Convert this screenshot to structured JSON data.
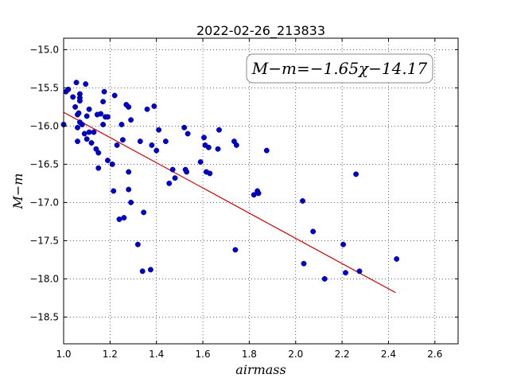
{
  "chart_data": {
    "type": "scatter",
    "title": "2022-02-26_213833",
    "xlabel": "airmass",
    "ylabel": "M−m",
    "xlim": [
      1.0,
      2.7
    ],
    "ylim": [
      -18.85,
      -14.85
    ],
    "y_inverted": true,
    "grid": true,
    "x_ticks": [
      "1.0",
      "1.2",
      "1.4",
      "1.6",
      "1.8",
      "2.0",
      "2.2",
      "2.4",
      "2.6"
    ],
    "x_tick_values": [
      1.0,
      1.2,
      1.4,
      1.6,
      1.8,
      2.0,
      2.2,
      2.4,
      2.6
    ],
    "y_ticks": [
      "−15.0",
      "−15.5",
      "−16.0",
      "−16.5",
      "−17.0",
      "−17.5",
      "−18.0",
      "−18.5"
    ],
    "y_tick_values": [
      -15.0,
      -15.5,
      -16.0,
      -16.5,
      -17.0,
      -17.5,
      -18.0,
      -18.5
    ],
    "annotation": "M−m=−1.65χ−14.17",
    "fit": {
      "slope": -1.65,
      "intercept": -14.17,
      "x_range": [
        1.0,
        2.43
      ],
      "color": "#cc0000"
    },
    "point_color": "#0000cc",
    "points": [
      [
        1.0,
        -15.98
      ],
      [
        1.01,
        -15.55
      ],
      [
        1.02,
        -15.52
      ],
      [
        1.04,
        -15.62
      ],
      [
        1.05,
        -15.75
      ],
      [
        1.055,
        -15.43
      ],
      [
        1.06,
        -15.85
      ],
      [
        1.065,
        -15.83
      ],
      [
        1.06,
        -16.02
      ],
      [
        1.06,
        -16.2
      ],
      [
        1.07,
        -15.58
      ],
      [
        1.07,
        -15.63
      ],
      [
        1.07,
        -15.67
      ],
      [
        1.07,
        -15.95
      ],
      [
        1.08,
        -15.98
      ],
      [
        1.09,
        -16.1
      ],
      [
        1.095,
        -15.45
      ],
      [
        1.1,
        -15.87
      ],
      [
        1.1,
        -16.17
      ],
      [
        1.11,
        -15.78
      ],
      [
        1.11,
        -16.08
      ],
      [
        1.12,
        -16.22
      ],
      [
        1.13,
        -16.08
      ],
      [
        1.14,
        -16.3
      ],
      [
        1.145,
        -15.85
      ],
      [
        1.15,
        -16.35
      ],
      [
        1.15,
        -16.55
      ],
      [
        1.16,
        -15.84
      ],
      [
        1.17,
        -15.98
      ],
      [
        1.17,
        -15.68
      ],
      [
        1.175,
        -15.55
      ],
      [
        1.18,
        -15.88
      ],
      [
        1.19,
        -15.88
      ],
      [
        1.19,
        -16.45
      ],
      [
        1.21,
        -16.5
      ],
      [
        1.215,
        -16.85
      ],
      [
        1.22,
        -15.6
      ],
      [
        1.23,
        -16.25
      ],
      [
        1.24,
        -17.22
      ],
      [
        1.25,
        -15.98
      ],
      [
        1.255,
        -16.18
      ],
      [
        1.26,
        -17.2
      ],
      [
        1.27,
        -15.72
      ],
      [
        1.28,
        -15.75
      ],
      [
        1.28,
        -16.6
      ],
      [
        1.28,
        -16.83
      ],
      [
        1.29,
        -15.92
      ],
      [
        1.29,
        -17.0
      ],
      [
        1.32,
        -17.55
      ],
      [
        1.33,
        -16.2
      ],
      [
        1.34,
        -17.9
      ],
      [
        1.345,
        -17.13
      ],
      [
        1.36,
        -15.78
      ],
      [
        1.375,
        -17.88
      ],
      [
        1.38,
        -16.25
      ],
      [
        1.39,
        -15.74
      ],
      [
        1.4,
        -16.32
      ],
      [
        1.41,
        -16.05
      ],
      [
        1.44,
        -16.2
      ],
      [
        1.455,
        -16.75
      ],
      [
        1.47,
        -16.57
      ],
      [
        1.48,
        -16.68
      ],
      [
        1.52,
        -16.02
      ],
      [
        1.525,
        -16.57
      ],
      [
        1.53,
        -16.6
      ],
      [
        1.535,
        -16.1
      ],
      [
        1.59,
        -16.47
      ],
      [
        1.605,
        -16.15
      ],
      [
        1.61,
        -16.25
      ],
      [
        1.615,
        -16.6
      ],
      [
        1.625,
        -16.28
      ],
      [
        1.63,
        -16.62
      ],
      [
        1.665,
        -16.3
      ],
      [
        1.67,
        -16.05
      ],
      [
        1.735,
        -16.2
      ],
      [
        1.74,
        -17.62
      ],
      [
        1.745,
        -16.25
      ],
      [
        1.82,
        -16.9
      ],
      [
        1.835,
        -16.85
      ],
      [
        1.84,
        -16.88
      ],
      [
        1.875,
        -16.32
      ],
      [
        2.03,
        -16.98
      ],
      [
        2.035,
        -17.8
      ],
      [
        2.075,
        -17.38
      ],
      [
        2.125,
        -18.0
      ],
      [
        2.205,
        -17.55
      ],
      [
        2.215,
        -17.92
      ],
      [
        2.26,
        -16.63
      ],
      [
        2.275,
        -17.9
      ],
      [
        2.435,
        -17.74
      ]
    ]
  }
}
